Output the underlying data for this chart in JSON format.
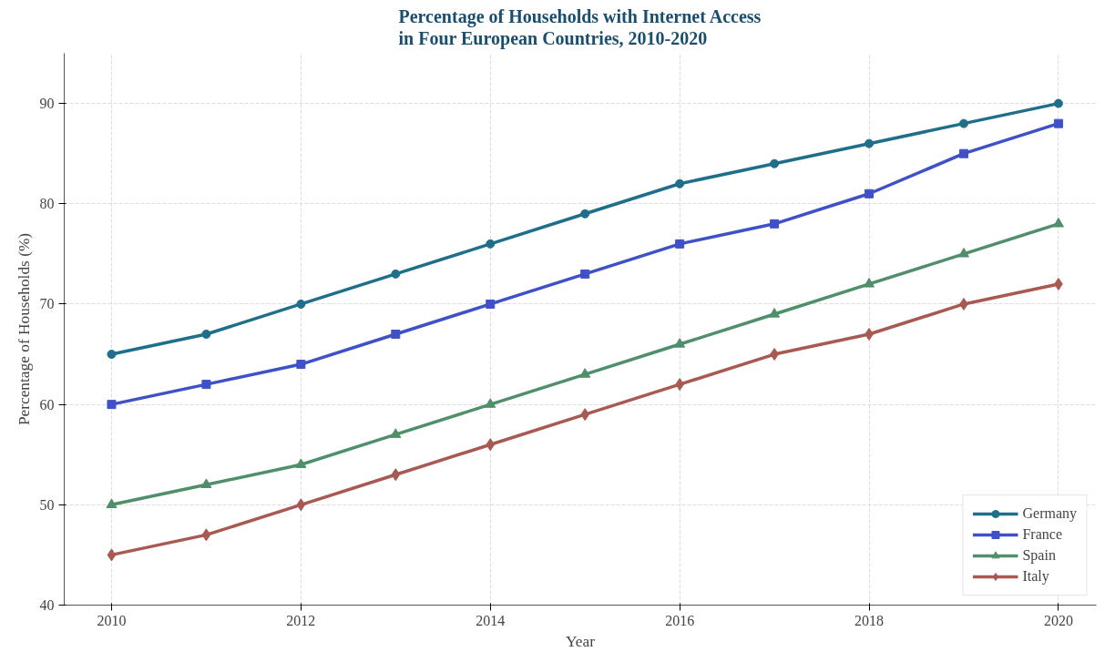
{
  "chart_data": {
    "type": "line",
    "title": "Percentage of Households with Internet Access\nin Four European Countries, 2010-2020",
    "xlabel": "Year",
    "ylabel": "Percentage of Households (%)",
    "x": [
      2010,
      2011,
      2012,
      2013,
      2014,
      2015,
      2016,
      2017,
      2018,
      2019,
      2020
    ],
    "series": [
      {
        "name": "Germany",
        "color": "#1f6f8b",
        "marker": "circle",
        "values": [
          65,
          67,
          70,
          73,
          76,
          79,
          82,
          84,
          86,
          88,
          90
        ]
      },
      {
        "name": "France",
        "color": "#3f51c8",
        "marker": "square",
        "values": [
          60,
          62,
          64,
          67,
          70,
          73,
          76,
          78,
          81,
          85,
          88
        ]
      },
      {
        "name": "Spain",
        "color": "#4f8f6a",
        "marker": "triangle",
        "values": [
          50,
          52,
          54,
          57,
          60,
          63,
          66,
          69,
          72,
          75,
          78
        ]
      },
      {
        "name": "Italy",
        "color": "#a85a52",
        "marker": "diamond",
        "values": [
          45,
          47,
          50,
          53,
          56,
          59,
          62,
          65,
          67,
          70,
          72
        ]
      }
    ],
    "xlim": [
      2009.5,
      2020.4
    ],
    "ylim": [
      40,
      95
    ],
    "xticks": [
      2010,
      2012,
      2014,
      2016,
      2018,
      2020
    ],
    "yticks": [
      40,
      50,
      60,
      70,
      80,
      90
    ],
    "grid": true,
    "legend": "bottom right",
    "line_style": "solid"
  }
}
